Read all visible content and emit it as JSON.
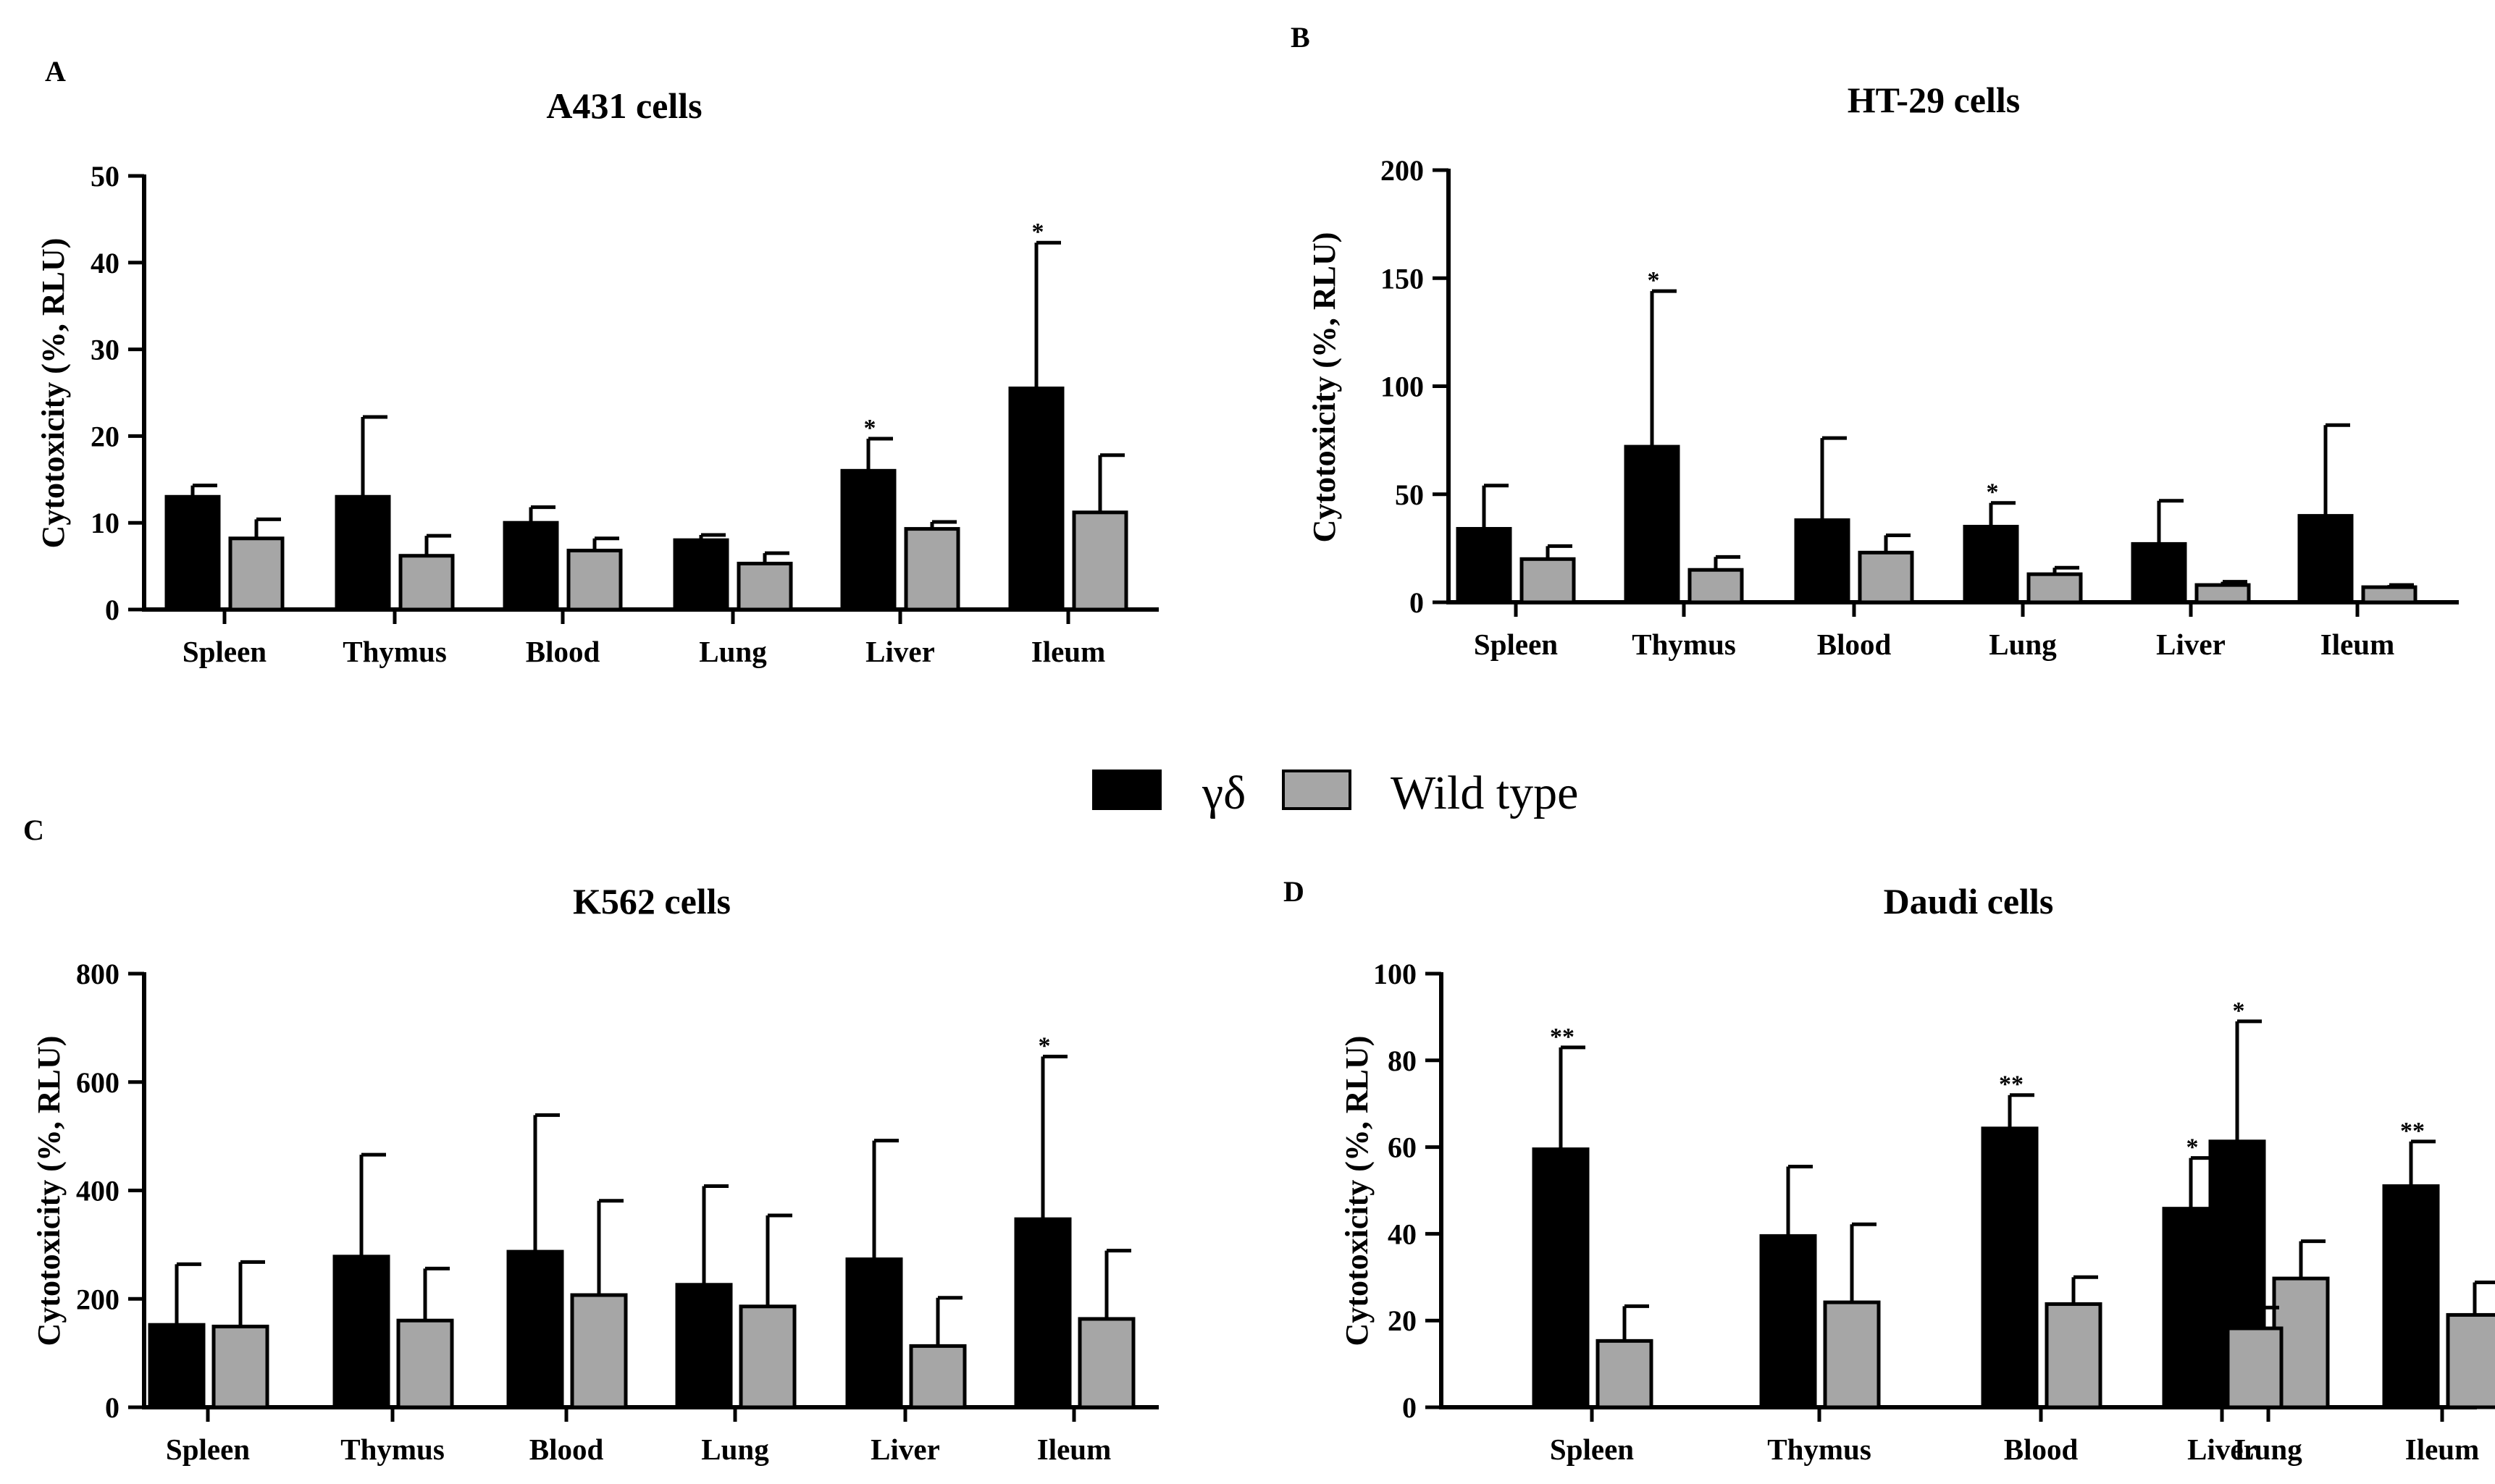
{
  "legend": {
    "items": [
      {
        "label": "γδ",
        "color": "#000000"
      },
      {
        "label": "Wild type",
        "color": "#a6a6a6"
      }
    ]
  },
  "colors": {
    "gd": "#000000",
    "wt": "#a6a6a6",
    "axis": "#000000"
  },
  "chart_data": [
    {
      "panel": "A",
      "type": "bar",
      "title": "A431 cells",
      "ylabel": "Cytotoxicity (%, RLU)",
      "ylim": [
        0,
        50
      ],
      "yticks": [
        0,
        10,
        20,
        30,
        40,
        50
      ],
      "categories": [
        "Spleen",
        "Thymus",
        "Blood",
        "Lung",
        "Liver",
        "Ileum"
      ],
      "series": [
        {
          "name": "γδ",
          "values": [
            13,
            13,
            10,
            8,
            16,
            25.5
          ],
          "errors": [
            1.3,
            9.2,
            1.8,
            0.6,
            3.7,
            16.8
          ]
        },
        {
          "name": "Wild type",
          "values": [
            8.2,
            6.2,
            6.8,
            5.3,
            9.3,
            11.2
          ],
          "errors": [
            2.2,
            2.3,
            1.4,
            1.2,
            0.8,
            6.6
          ]
        }
      ],
      "significance": [
        "",
        "",
        "",
        "",
        "*",
        "*"
      ]
    },
    {
      "panel": "B",
      "type": "bar",
      "title": "HT-29 cells",
      "ylabel": "Cytotoxicity (%, RLU)",
      "ylim": [
        0,
        200
      ],
      "yticks": [
        0,
        50,
        100,
        150,
        200
      ],
      "categories": [
        "Spleen",
        "Thymus",
        "Blood",
        "Lung",
        "Liver",
        "Ileum"
      ],
      "series": [
        {
          "name": "γδ",
          "values": [
            34,
            72,
            38,
            35,
            27,
            40
          ],
          "errors": [
            20,
            72,
            38,
            11,
            20,
            42
          ]
        },
        {
          "name": "Wild type",
          "values": [
            20,
            15,
            23,
            13,
            8,
            7
          ],
          "errors": [
            6,
            6,
            8,
            3,
            1.5,
            1
          ]
        }
      ],
      "significance": [
        "",
        "*",
        "",
        "*",
        "",
        ""
      ]
    },
    {
      "panel": "C",
      "type": "bar",
      "title": "K562 cells",
      "ylabel": "Cytotoxicity (%, RLU)",
      "ylim": [
        0,
        800
      ],
      "yticks": [
        0,
        200,
        400,
        600,
        800
      ],
      "categories": [
        "Spleen",
        "Thymus",
        "Blood",
        "Lung",
        "Liver",
        "Ileum"
      ],
      "series": [
        {
          "name": "γδ",
          "values": [
            152,
            278,
            287,
            226,
            273,
            347
          ],
          "errors": [
            112,
            188,
            252,
            182,
            219,
            300
          ]
        },
        {
          "name": "Wild type",
          "values": [
            149,
            160,
            207,
            186,
            113,
            163
          ],
          "errors": [
            119,
            96,
            174,
            168,
            89,
            126
          ]
        }
      ],
      "significance": [
        "",
        "",
        "",
        "",
        "",
        "*"
      ]
    },
    {
      "panel": "D",
      "type": "bar",
      "title": "Daudi cells",
      "ylabel": "Cytotoxicity (%, RLU)",
      "ylim": [
        0,
        100
      ],
      "yticks": [
        0,
        20,
        40,
        60,
        80,
        100
      ],
      "categories": [
        "Spleen",
        "Thymus",
        "Blood",
        "Lung",
        "Liver",
        "Ileum"
      ],
      "series": [
        {
          "name": "γδ",
          "values": [
            59.5,
            39.5,
            64.3,
            61.3,
            45.8,
            51
          ],
          "errors": [
            23.5,
            16,
            7.7,
            27.7,
            11.7,
            10.3
          ]
        },
        {
          "name": "Wild type",
          "values": [
            15.3,
            24.2,
            23.8,
            29.7,
            18.2,
            21.3
          ],
          "errors": [
            8,
            18,
            6.2,
            8.6,
            4.8,
            7.5
          ]
        }
      ],
      "significance": [
        "**",
        "",
        "**",
        "*",
        "*",
        "**"
      ]
    }
  ]
}
